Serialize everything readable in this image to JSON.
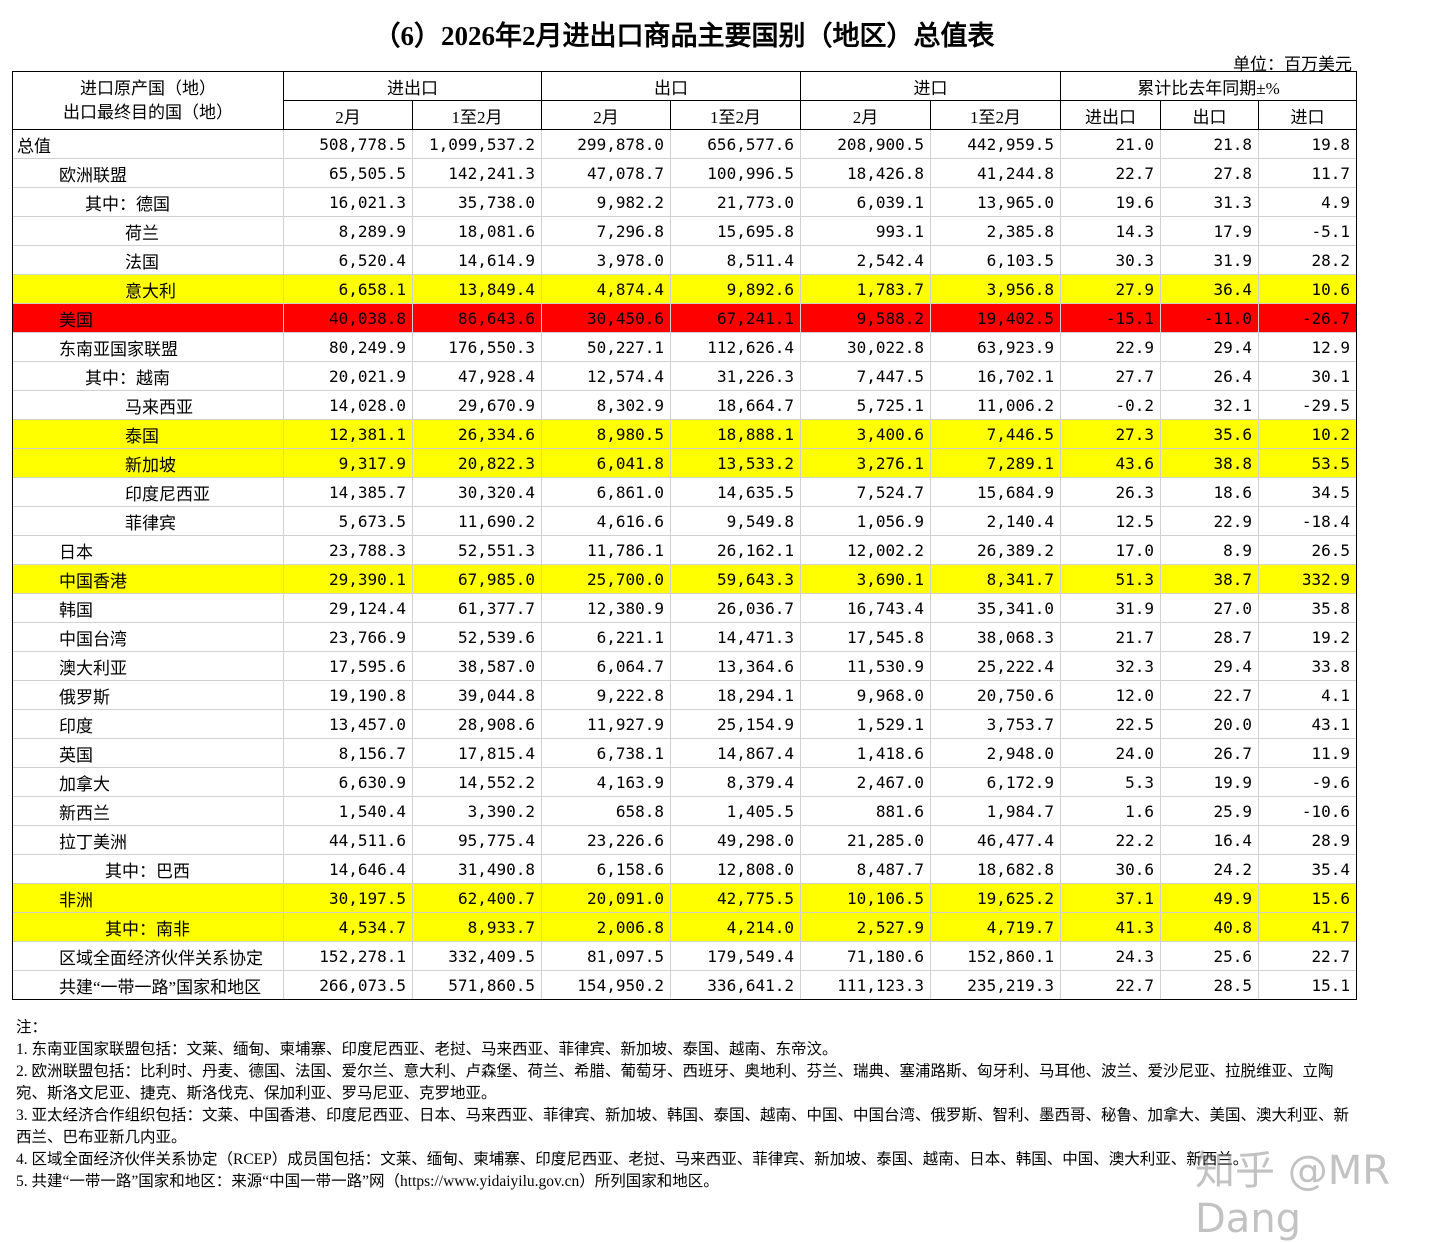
{
  "header": {
    "title": "（6）2026年2月进出口商品主要国别（地区）总值表",
    "unit": "单位：百万美元"
  },
  "table": {
    "corner": [
      "进口原产国（地）",
      "出口最终目的国（地）"
    ],
    "groups": [
      "进出口",
      "出口",
      "进口",
      "累计比去年同期±%"
    ],
    "subheaders": [
      "2月",
      "1至2月",
      "2月",
      "1至2月",
      "2月",
      "1至2月",
      "进出口",
      "出口",
      "进口"
    ],
    "rows": [
      {
        "cells": [
          "总值",
          "508,778.5",
          "1,099,537.2",
          "299,878.0",
          "656,577.6",
          "208,900.5",
          "442,959.5",
          "21.0",
          "21.8",
          "19.8"
        ]
      },
      {
        "cells": [
          "欧洲联盟",
          "65,505.5",
          "142,241.3",
          "47,078.7",
          "100,996.5",
          "18,426.8",
          "41,244.8",
          "22.7",
          "27.8",
          "11.7"
        ]
      },
      {
        "cells": [
          "其中：德国",
          "16,021.3",
          "35,738.0",
          "9,982.2",
          "21,773.0",
          "6,039.1",
          "13,965.0",
          "19.6",
          "31.3",
          "4.9"
        ]
      },
      {
        "cells": [
          "荷兰",
          "8,289.9",
          "18,081.6",
          "7,296.8",
          "15,695.8",
          "993.1",
          "2,385.8",
          "14.3",
          "17.9",
          "-5.1"
        ]
      },
      {
        "cells": [
          "法国",
          "6,520.4",
          "14,614.9",
          "3,978.0",
          "8,511.4",
          "2,542.4",
          "6,103.5",
          "30.3",
          "31.9",
          "28.2"
        ]
      },
      {
        "cells": [
          "意大利",
          "6,658.1",
          "13,849.4",
          "4,874.4",
          "9,892.6",
          "1,783.7",
          "3,956.8",
          "27.9",
          "36.4",
          "10.6"
        ],
        "fill": "#ffff00"
      },
      {
        "cells": [
          "美国",
          "40,038.8",
          "86,643.6",
          "30,450.6",
          "67,241.1",
          "9,588.2",
          "19,402.5",
          "-15.1",
          "-11.0",
          "-26.7"
        ],
        "fill": "#ff0000"
      },
      {
        "cells": [
          "东南亚国家联盟",
          "80,249.9",
          "176,550.3",
          "50,227.1",
          "112,626.4",
          "30,022.8",
          "63,923.9",
          "22.9",
          "29.4",
          "12.9"
        ]
      },
      {
        "cells": [
          "其中：越南",
          "20,021.9",
          "47,928.4",
          "12,574.4",
          "31,226.3",
          "7,447.5",
          "16,702.1",
          "27.7",
          "26.4",
          "30.1"
        ]
      },
      {
        "cells": [
          "马来西亚",
          "14,028.0",
          "29,670.9",
          "8,302.9",
          "18,664.7",
          "5,725.1",
          "11,006.2",
          "-0.2",
          "32.1",
          "-29.5"
        ]
      },
      {
        "cells": [
          "泰国",
          "12,381.1",
          "26,334.6",
          "8,980.5",
          "18,888.1",
          "3,400.6",
          "7,446.5",
          "27.3",
          "35.6",
          "10.2"
        ],
        "fill": "#ffff00"
      },
      {
        "cells": [
          "新加坡",
          "9,317.9",
          "20,822.3",
          "6,041.8",
          "13,533.2",
          "3,276.1",
          "7,289.1",
          "43.6",
          "38.8",
          "53.5"
        ],
        "fill": "#ffff00"
      },
      {
        "cells": [
          "印度尼西亚",
          "14,385.7",
          "30,320.4",
          "6,861.0",
          "14,635.5",
          "7,524.7",
          "15,684.9",
          "26.3",
          "18.6",
          "34.5"
        ]
      },
      {
        "cells": [
          "菲律宾",
          "5,673.5",
          "11,690.2",
          "4,616.6",
          "9,549.8",
          "1,056.9",
          "2,140.4",
          "12.5",
          "22.9",
          "-18.4"
        ]
      },
      {
        "cells": [
          "日本",
          "23,788.3",
          "52,551.3",
          "11,786.1",
          "26,162.1",
          "12,002.2",
          "26,389.2",
          "17.0",
          "8.9",
          "26.5"
        ]
      },
      {
        "cells": [
          "中国香港",
          "29,390.1",
          "67,985.0",
          "25,700.0",
          "59,643.3",
          "3,690.1",
          "8,341.7",
          "51.3",
          "38.7",
          "332.9"
        ],
        "fill": "#ffff00"
      },
      {
        "cells": [
          "韩国",
          "29,124.4",
          "61,377.7",
          "12,380.9",
          "26,036.7",
          "16,743.4",
          "35,341.0",
          "31.9",
          "27.0",
          "35.8"
        ]
      },
      {
        "cells": [
          "中国台湾",
          "23,766.9",
          "52,539.6",
          "6,221.1",
          "14,471.3",
          "17,545.8",
          "38,068.3",
          "21.7",
          "28.7",
          "19.2"
        ]
      },
      {
        "cells": [
          "澳大利亚",
          "17,595.6",
          "38,587.0",
          "6,064.7",
          "13,364.6",
          "11,530.9",
          "25,222.4",
          "32.3",
          "29.4",
          "33.8"
        ]
      },
      {
        "cells": [
          "俄罗斯",
          "19,190.8",
          "39,044.8",
          "9,222.8",
          "18,294.1",
          "9,968.0",
          "20,750.6",
          "12.0",
          "22.7",
          "4.1"
        ]
      },
      {
        "cells": [
          "印度",
          "13,457.0",
          "28,908.6",
          "11,927.9",
          "25,154.9",
          "1,529.1",
          "3,753.7",
          "22.5",
          "20.0",
          "43.1"
        ]
      },
      {
        "cells": [
          "英国",
          "8,156.7",
          "17,815.4",
          "6,738.1",
          "14,867.4",
          "1,418.6",
          "2,948.0",
          "24.0",
          "26.7",
          "11.9"
        ]
      },
      {
        "cells": [
          "加拿大",
          "6,630.9",
          "14,552.2",
          "4,163.9",
          "8,379.4",
          "2,467.0",
          "6,172.9",
          "5.3",
          "19.9",
          "-9.6"
        ]
      },
      {
        "cells": [
          "新西兰",
          "1,540.4",
          "3,390.2",
          "658.8",
          "1,405.5",
          "881.6",
          "1,984.7",
          "1.6",
          "25.9",
          "-10.6"
        ]
      },
      {
        "cells": [
          "拉丁美洲",
          "44,511.6",
          "95,775.4",
          "23,226.6",
          "49,298.0",
          "21,285.0",
          "46,477.4",
          "22.2",
          "16.4",
          "28.9"
        ]
      },
      {
        "cells": [
          "其中：巴西",
          "14,646.4",
          "31,490.8",
          "6,158.6",
          "12,808.0",
          "8,487.7",
          "18,682.8",
          "30.6",
          "24.2",
          "35.4"
        ]
      },
      {
        "cells": [
          "非洲",
          "30,197.5",
          "62,400.7",
          "20,091.0",
          "42,775.5",
          "10,106.5",
          "19,625.2",
          "37.1",
          "49.9",
          "15.6"
        ],
        "fill": "#ffff00"
      },
      {
        "cells": [
          "其中：南非",
          "4,534.7",
          "8,933.7",
          "2,006.8",
          "4,214.0",
          "2,527.9",
          "4,719.7",
          "41.3",
          "40.8",
          "41.7"
        ],
        "fill": "#ffff00"
      },
      {
        "cells": [
          "区域全面经济伙伴关系协定",
          "152,278.1",
          "332,409.5",
          "81,097.5",
          "179,549.4",
          "71,180.6",
          "152,860.1",
          "24.3",
          "25.6",
          "22.7"
        ]
      },
      {
        "cells": [
          "共建“一带一路”国家和地区",
          "266,073.5",
          "571,860.5",
          "154,950.2",
          "336,641.2",
          "111,123.3",
          "235,219.3",
          "22.7",
          "28.5",
          "15.1"
        ]
      }
    ]
  },
  "notes": {
    "heading": "注：",
    "items": [
      "1. 东南亚国家联盟包括：文莱、缅甸、柬埔寨、印度尼西亚、老挝、马来西亚、菲律宾、新加坡、泰国、越南、东帝汶。",
      "2. 欧洲联盟包括：比利时、丹麦、德国、法国、爱尔兰、意大利、卢森堡、荷兰、希腊、葡萄牙、西班牙、奥地利、芬兰、瑞典、塞浦路斯、匈牙利、马耳他、波兰、爱沙尼亚、拉脱维亚、立陶宛、斯洛文尼亚、捷克、斯洛伐克、保加利亚、罗马尼亚、克罗地亚。",
      "3. 亚太经济合作组织包括：文莱、中国香港、印度尼西亚、日本、马来西亚、菲律宾、新加坡、韩国、泰国、越南、中国、中国台湾、俄罗斯、智利、墨西哥、秘鲁、加拿大、美国、澳大利亚、新西兰、巴布亚新几内亚。",
      "4. 区域全面经济伙伴关系协定（RCEP）成员国包括：文莱、缅甸、柬埔寨、印度尼西亚、老挝、马来西亚、菲律宾、新加坡、泰国、越南、日本、韩国、中国、澳大利亚、新西兰。",
      "5. 共建“一带一路”国家和地区：来源“中国一带一路”网（https://www.yidaiyilu.gov.cn）所列国家和地区。"
    ]
  },
  "watermark": "知乎 @MR Dang"
}
